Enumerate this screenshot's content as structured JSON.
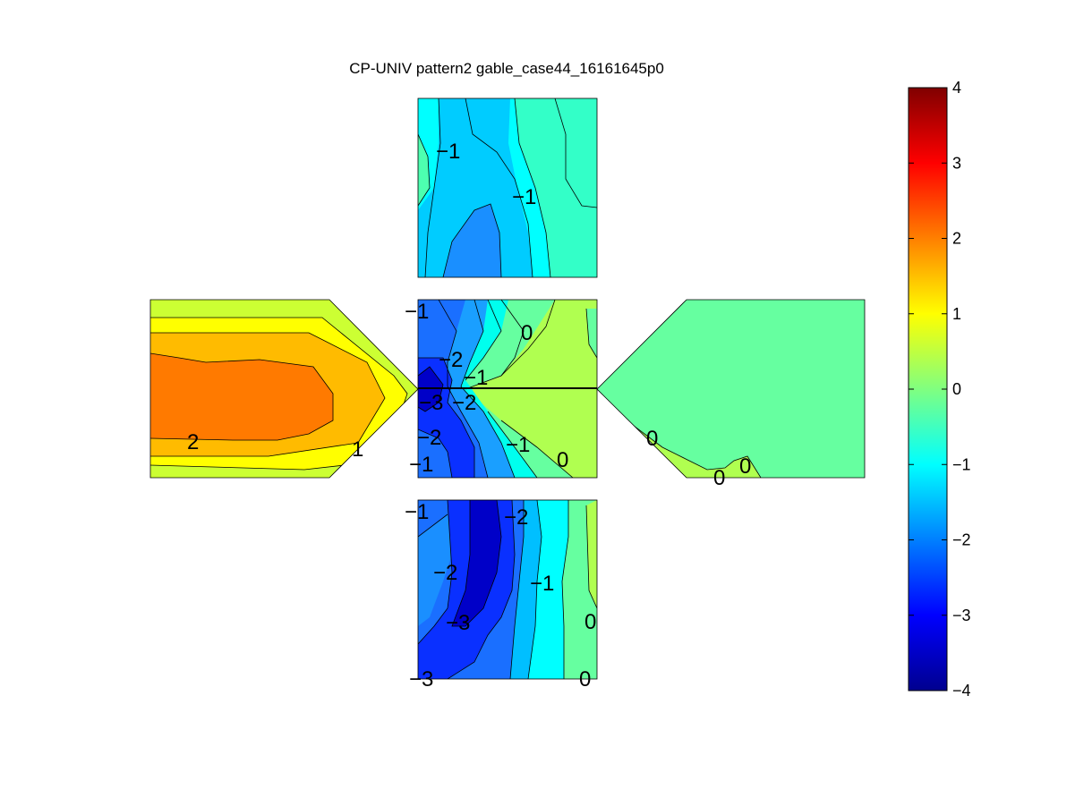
{
  "chart_data": {
    "type": "contour",
    "title": "CP-UNIV pattern2 gable_case44_16161645p0",
    "colormap": "jet",
    "colorbar": {
      "range": [
        -4,
        4
      ],
      "ticks": [
        "4",
        "3",
        "2",
        "1",
        "0",
        "−1",
        "−2",
        "−3",
        "−4"
      ],
      "stops": [
        "#00008f",
        "#0000ff",
        "#0080ff",
        "#00ffff",
        "#80ff80",
        "#ffff00",
        "#ff8000",
        "#ff0000",
        "#800000"
      ]
    },
    "panels": [
      {
        "name": "top-face",
        "contour_labels": [
          "−1",
          "−1"
        ]
      },
      {
        "name": "left-gable",
        "contour_labels": [
          "2",
          "1"
        ]
      },
      {
        "name": "center-roof",
        "contour_labels": [
          "−1",
          "0",
          "−2",
          "−1",
          "−3",
          "−2",
          "−2",
          "−1",
          "0",
          "−1"
        ]
      },
      {
        "name": "right-gable",
        "contour_labels": [
          "0",
          "0",
          "0"
        ]
      },
      {
        "name": "bottom-face",
        "contour_labels": [
          "−1",
          "−2",
          "−2",
          "−1",
          "−3",
          "0",
          "−3",
          "0"
        ]
      }
    ]
  }
}
